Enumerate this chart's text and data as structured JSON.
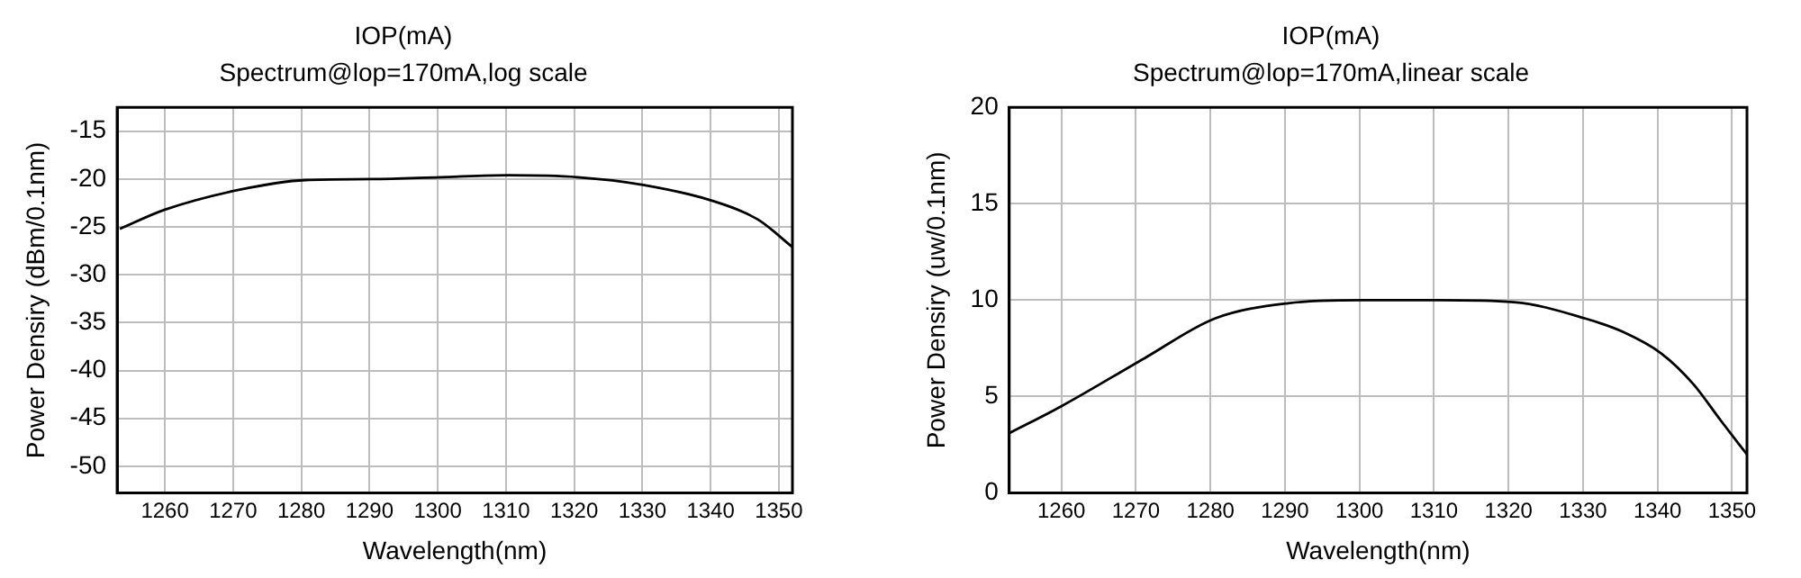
{
  "chart_data": [
    {
      "type": "line",
      "title": "IOP(mA)",
      "subtitle": "Spectrum@lop=170mA,log scale",
      "xlabel": "Wavelength(nm)",
      "ylabel": "Power Densiry (dBm/0.1nm)",
      "x": [
        1253.4,
        1260,
        1271,
        1280.6,
        1290.4,
        1300.4,
        1310.4,
        1320.5,
        1330.1,
        1340.4,
        1346.9,
        1352
      ],
      "series": [
        {
          "color": "#000000",
          "values": [
            -25.2,
            -23.2,
            -21.1,
            -20.1,
            -20,
            -19.8,
            -19.6,
            -19.8,
            -20.6,
            -22.3,
            -24.2,
            -27.1
          ]
        }
      ],
      "xlim": [
        1253,
        1352
      ],
      "xticks": [
        1260,
        1270,
        1280,
        1290,
        1300,
        1310,
        1320,
        1330,
        1340,
        1350
      ],
      "ylim": [
        -52.8,
        -12.5
      ],
      "yticks": [
        -50,
        -45,
        -40,
        -35,
        -30,
        -25,
        -20,
        -15
      ],
      "grid": true,
      "legend": false,
      "marker": "none",
      "line_style": "solid"
    },
    {
      "type": "line",
      "title": "IOP(mA)",
      "subtitle": "Spectrum@lop=170mA,linear scale",
      "xlabel": "Wavelength(nm)",
      "ylabel": "Power Densiry (uw/0.1nm)",
      "x": [
        1253,
        1260,
        1271.2,
        1280.6,
        1290.4,
        1300.4,
        1310.4,
        1320.7,
        1330.3,
        1335.4,
        1340.5,
        1344.8,
        1348.5,
        1352
      ],
      "series": [
        {
          "color": "#000000",
          "values": [
            3.1,
            4.5,
            7.0,
            9.05,
            9.84,
            10.0,
            10.0,
            9.9,
            9.05,
            8.35,
            7.24,
            5.65,
            3.75,
            2.0
          ]
        }
      ],
      "xlim": [
        1253,
        1352
      ],
      "xticks": [
        1260,
        1270,
        1280,
        1290,
        1300,
        1310,
        1320,
        1330,
        1340,
        1350
      ],
      "ylim": [
        0,
        20
      ],
      "yticks": [
        0,
        5,
        10,
        15,
        20
      ],
      "grid": true,
      "legend": false,
      "marker": "none",
      "line_style": "solid"
    }
  ]
}
